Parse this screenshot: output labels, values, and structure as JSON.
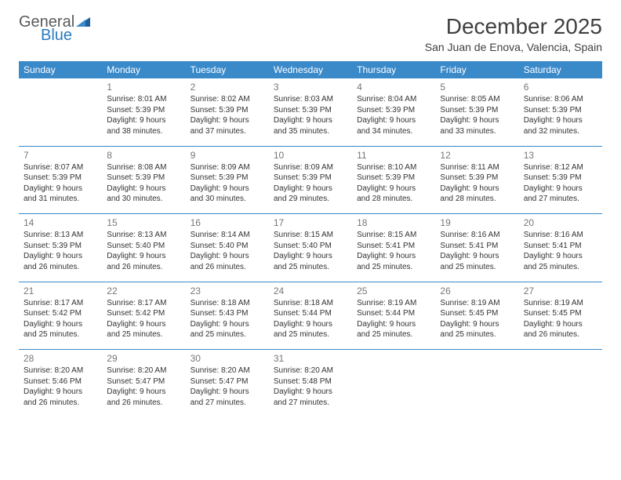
{
  "brand": {
    "general": "General",
    "blue": "Blue"
  },
  "title": "December 2025",
  "location": "San Juan de Enova, Valencia, Spain",
  "colors": {
    "header_bg": "#3a89c9",
    "header_text": "#ffffff",
    "rule": "#3a89c9",
    "text": "#333333",
    "daynum": "#777777",
    "title": "#404040"
  },
  "weekdays": [
    "Sunday",
    "Monday",
    "Tuesday",
    "Wednesday",
    "Thursday",
    "Friday",
    "Saturday"
  ],
  "weeks": [
    [
      null,
      {
        "n": "1",
        "sr": "Sunrise: 8:01 AM",
        "ss": "Sunset: 5:39 PM",
        "d1": "Daylight: 9 hours",
        "d2": "and 38 minutes."
      },
      {
        "n": "2",
        "sr": "Sunrise: 8:02 AM",
        "ss": "Sunset: 5:39 PM",
        "d1": "Daylight: 9 hours",
        "d2": "and 37 minutes."
      },
      {
        "n": "3",
        "sr": "Sunrise: 8:03 AM",
        "ss": "Sunset: 5:39 PM",
        "d1": "Daylight: 9 hours",
        "d2": "and 35 minutes."
      },
      {
        "n": "4",
        "sr": "Sunrise: 8:04 AM",
        "ss": "Sunset: 5:39 PM",
        "d1": "Daylight: 9 hours",
        "d2": "and 34 minutes."
      },
      {
        "n": "5",
        "sr": "Sunrise: 8:05 AM",
        "ss": "Sunset: 5:39 PM",
        "d1": "Daylight: 9 hours",
        "d2": "and 33 minutes."
      },
      {
        "n": "6",
        "sr": "Sunrise: 8:06 AM",
        "ss": "Sunset: 5:39 PM",
        "d1": "Daylight: 9 hours",
        "d2": "and 32 minutes."
      }
    ],
    [
      {
        "n": "7",
        "sr": "Sunrise: 8:07 AM",
        "ss": "Sunset: 5:39 PM",
        "d1": "Daylight: 9 hours",
        "d2": "and 31 minutes."
      },
      {
        "n": "8",
        "sr": "Sunrise: 8:08 AM",
        "ss": "Sunset: 5:39 PM",
        "d1": "Daylight: 9 hours",
        "d2": "and 30 minutes."
      },
      {
        "n": "9",
        "sr": "Sunrise: 8:09 AM",
        "ss": "Sunset: 5:39 PM",
        "d1": "Daylight: 9 hours",
        "d2": "and 30 minutes."
      },
      {
        "n": "10",
        "sr": "Sunrise: 8:09 AM",
        "ss": "Sunset: 5:39 PM",
        "d1": "Daylight: 9 hours",
        "d2": "and 29 minutes."
      },
      {
        "n": "11",
        "sr": "Sunrise: 8:10 AM",
        "ss": "Sunset: 5:39 PM",
        "d1": "Daylight: 9 hours",
        "d2": "and 28 minutes."
      },
      {
        "n": "12",
        "sr": "Sunrise: 8:11 AM",
        "ss": "Sunset: 5:39 PM",
        "d1": "Daylight: 9 hours",
        "d2": "and 28 minutes."
      },
      {
        "n": "13",
        "sr": "Sunrise: 8:12 AM",
        "ss": "Sunset: 5:39 PM",
        "d1": "Daylight: 9 hours",
        "d2": "and 27 minutes."
      }
    ],
    [
      {
        "n": "14",
        "sr": "Sunrise: 8:13 AM",
        "ss": "Sunset: 5:39 PM",
        "d1": "Daylight: 9 hours",
        "d2": "and 26 minutes."
      },
      {
        "n": "15",
        "sr": "Sunrise: 8:13 AM",
        "ss": "Sunset: 5:40 PM",
        "d1": "Daylight: 9 hours",
        "d2": "and 26 minutes."
      },
      {
        "n": "16",
        "sr": "Sunrise: 8:14 AM",
        "ss": "Sunset: 5:40 PM",
        "d1": "Daylight: 9 hours",
        "d2": "and 26 minutes."
      },
      {
        "n": "17",
        "sr": "Sunrise: 8:15 AM",
        "ss": "Sunset: 5:40 PM",
        "d1": "Daylight: 9 hours",
        "d2": "and 25 minutes."
      },
      {
        "n": "18",
        "sr": "Sunrise: 8:15 AM",
        "ss": "Sunset: 5:41 PM",
        "d1": "Daylight: 9 hours",
        "d2": "and 25 minutes."
      },
      {
        "n": "19",
        "sr": "Sunrise: 8:16 AM",
        "ss": "Sunset: 5:41 PM",
        "d1": "Daylight: 9 hours",
        "d2": "and 25 minutes."
      },
      {
        "n": "20",
        "sr": "Sunrise: 8:16 AM",
        "ss": "Sunset: 5:41 PM",
        "d1": "Daylight: 9 hours",
        "d2": "and 25 minutes."
      }
    ],
    [
      {
        "n": "21",
        "sr": "Sunrise: 8:17 AM",
        "ss": "Sunset: 5:42 PM",
        "d1": "Daylight: 9 hours",
        "d2": "and 25 minutes."
      },
      {
        "n": "22",
        "sr": "Sunrise: 8:17 AM",
        "ss": "Sunset: 5:42 PM",
        "d1": "Daylight: 9 hours",
        "d2": "and 25 minutes."
      },
      {
        "n": "23",
        "sr": "Sunrise: 8:18 AM",
        "ss": "Sunset: 5:43 PM",
        "d1": "Daylight: 9 hours",
        "d2": "and 25 minutes."
      },
      {
        "n": "24",
        "sr": "Sunrise: 8:18 AM",
        "ss": "Sunset: 5:44 PM",
        "d1": "Daylight: 9 hours",
        "d2": "and 25 minutes."
      },
      {
        "n": "25",
        "sr": "Sunrise: 8:19 AM",
        "ss": "Sunset: 5:44 PM",
        "d1": "Daylight: 9 hours",
        "d2": "and 25 minutes."
      },
      {
        "n": "26",
        "sr": "Sunrise: 8:19 AM",
        "ss": "Sunset: 5:45 PM",
        "d1": "Daylight: 9 hours",
        "d2": "and 25 minutes."
      },
      {
        "n": "27",
        "sr": "Sunrise: 8:19 AM",
        "ss": "Sunset: 5:45 PM",
        "d1": "Daylight: 9 hours",
        "d2": "and 26 minutes."
      }
    ],
    [
      {
        "n": "28",
        "sr": "Sunrise: 8:20 AM",
        "ss": "Sunset: 5:46 PM",
        "d1": "Daylight: 9 hours",
        "d2": "and 26 minutes."
      },
      {
        "n": "29",
        "sr": "Sunrise: 8:20 AM",
        "ss": "Sunset: 5:47 PM",
        "d1": "Daylight: 9 hours",
        "d2": "and 26 minutes."
      },
      {
        "n": "30",
        "sr": "Sunrise: 8:20 AM",
        "ss": "Sunset: 5:47 PM",
        "d1": "Daylight: 9 hours",
        "d2": "and 27 minutes."
      },
      {
        "n": "31",
        "sr": "Sunrise: 8:20 AM",
        "ss": "Sunset: 5:48 PM",
        "d1": "Daylight: 9 hours",
        "d2": "and 27 minutes."
      },
      null,
      null,
      null
    ]
  ]
}
